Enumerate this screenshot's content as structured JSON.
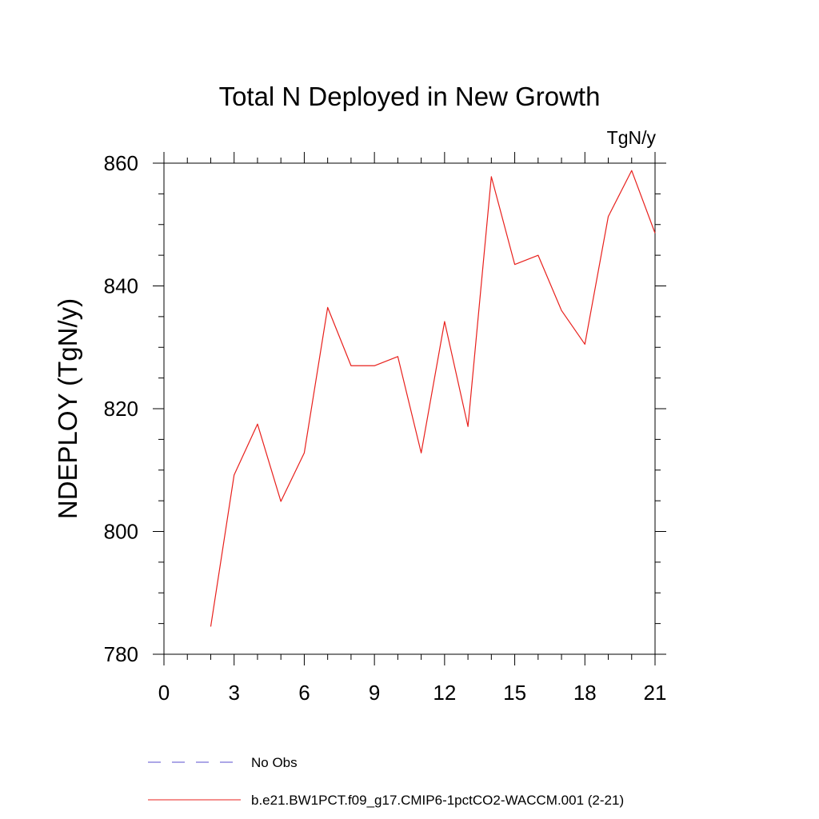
{
  "chart_data": {
    "type": "line",
    "title": "Total N Deployed in New Growth",
    "units_label": "TgN/y",
    "xlabel": "",
    "ylabel": "NDEPLOY  (TgN/y)",
    "xlim": [
      0,
      21
    ],
    "ylim": [
      780,
      860
    ],
    "xticks": [
      0,
      3,
      6,
      9,
      12,
      15,
      18,
      21
    ],
    "yticks": [
      780,
      800,
      820,
      840,
      860
    ],
    "x_minor_step": 1,
    "y_minor_step": 5,
    "grid": false,
    "legend_position": "bottom-left",
    "series": [
      {
        "name": "No Obs",
        "color": "#5a4fcf",
        "dash": "dashed",
        "x": [],
        "y": []
      },
      {
        "name": "b.e21.BW1PCT.f09_g17.CMIP6-1pctCO2-WACCM.001 (2-21)",
        "color": "#e8201c",
        "dash": "solid",
        "x": [
          2,
          3,
          4,
          5,
          6,
          7,
          8,
          9,
          10,
          11,
          12,
          13,
          14,
          15,
          16,
          17,
          18,
          19,
          20,
          21
        ],
        "y": [
          784.5,
          809.2,
          817.5,
          804.9,
          812.8,
          836.5,
          827.0,
          827.0,
          828.5,
          812.8,
          834.2,
          817.1,
          857.8,
          843.5,
          845.0,
          836.0,
          830.5,
          851.3,
          858.8,
          848.6
        ]
      }
    ]
  }
}
